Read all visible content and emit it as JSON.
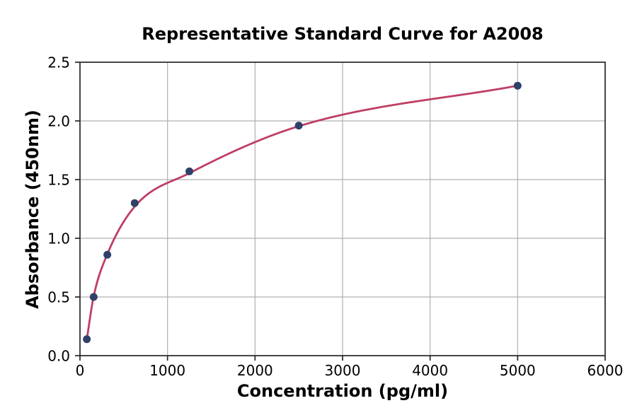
{
  "chart_data": {
    "type": "scatter",
    "title": "Representative Standard Curve for A2008",
    "xlabel": "Concentration (pg/ml)",
    "ylabel": "Absorbance (450nm)",
    "xlim": [
      0,
      6000
    ],
    "ylim": [
      0,
      2.5
    ],
    "x_ticks": [
      0,
      1000,
      2000,
      3000,
      4000,
      5000,
      6000
    ],
    "x_tick_labels": [
      "0",
      "1000",
      "2000",
      "3000",
      "4000",
      "5000",
      "6000"
    ],
    "y_ticks": [
      0,
      0.5,
      1.0,
      1.5,
      2.0,
      2.5
    ],
    "y_tick_labels": [
      "0.0",
      "0.5",
      "1.0",
      "1.5",
      "2.0",
      "2.5"
    ],
    "grid": true,
    "legend": "none",
    "series": [
      {
        "name": "standard-points",
        "type": "scatter",
        "x": [
          78.1,
          156.3,
          312.5,
          625,
          1250,
          2500,
          5000
        ],
        "y": [
          0.14,
          0.5,
          0.86,
          1.3,
          1.57,
          1.96,
          2.3
        ]
      },
      {
        "name": "fit-curve",
        "type": "smooth-line",
        "x": [
          78.1,
          156.3,
          312.5,
          625,
          1250,
          2500,
          5000
        ],
        "y": [
          0.14,
          0.505,
          0.865,
          1.27,
          1.555,
          1.955,
          2.3
        ]
      }
    ],
    "colors": {
      "marker": "#2f4069",
      "curve": "#bf3e64",
      "grid": "#b0b0b0",
      "axis": "#262626",
      "text": "#000000",
      "background": "#ffffff"
    }
  }
}
